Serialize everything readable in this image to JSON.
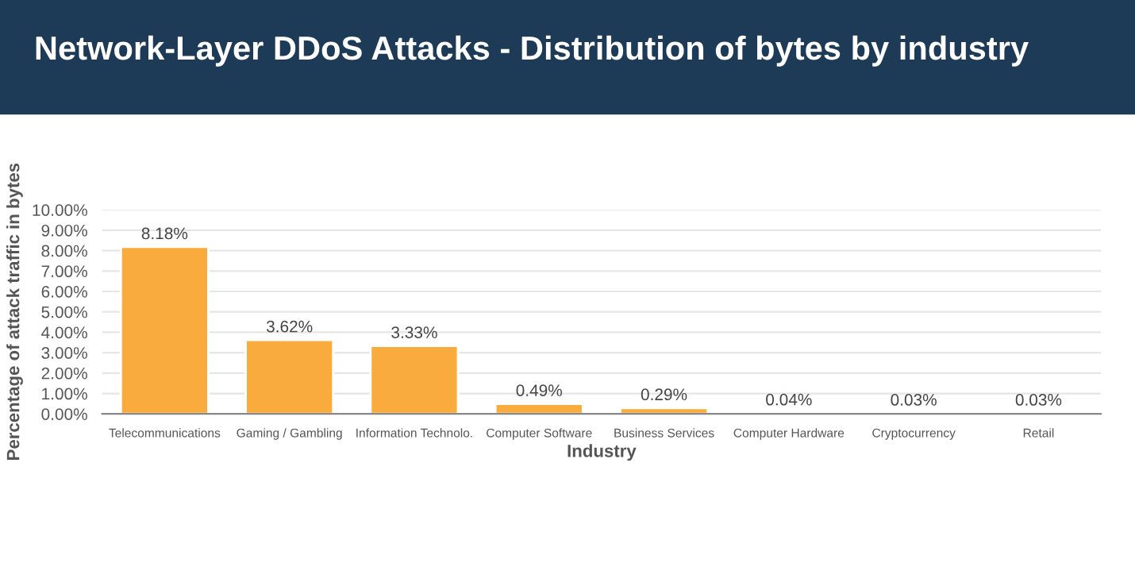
{
  "chart_data": {
    "type": "bar",
    "title": "Network-Layer DDoS Attacks - Distribution of bytes by industry",
    "xlabel": "Industry",
    "ylabel": "Percentage of attack traffic in bytes",
    "categories": [
      "Telecommunications",
      "Gaming / Gambling",
      "Information Technolo.",
      "Computer Software",
      "Business Services",
      "Computer Hardware",
      "Cryptocurrency",
      "Retail"
    ],
    "values": [
      8.18,
      3.62,
      3.33,
      0.49,
      0.29,
      0.04,
      0.03,
      0.03
    ],
    "value_labels": [
      "8.18%",
      "3.62%",
      "3.33%",
      "0.49%",
      "0.29%",
      "0.04%",
      "0.03%",
      "0.03%"
    ],
    "color": "#f9ab3d",
    "ylim": [
      0,
      10
    ],
    "yticks": [
      {
        "value": 0,
        "label": "0.00%"
      },
      {
        "value": 1,
        "label": "1.00%"
      },
      {
        "value": 2,
        "label": "2.00%"
      },
      {
        "value": 3,
        "label": "3.00%"
      },
      {
        "value": 4,
        "label": "4.00%"
      },
      {
        "value": 5,
        "label": "5.00%"
      },
      {
        "value": 6,
        "label": "6.00%"
      },
      {
        "value": 7,
        "label": "7.00%"
      },
      {
        "value": 8,
        "label": "8.00%"
      },
      {
        "value": 9,
        "label": "9.00%"
      },
      {
        "value": 10,
        "label": "10.00%"
      }
    ],
    "grid": "y",
    "legend": false
  }
}
